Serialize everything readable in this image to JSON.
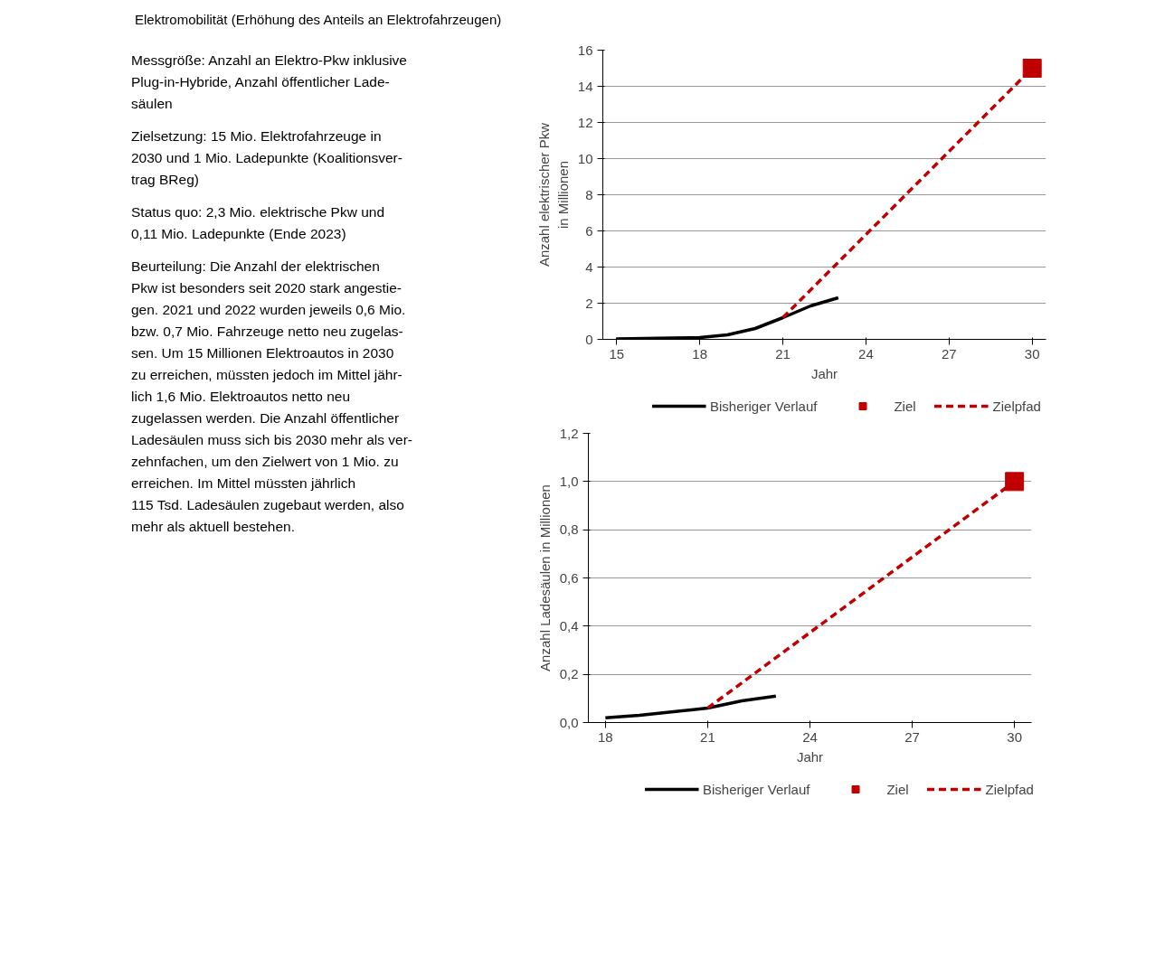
{
  "chart_data": [
    {
      "type": "other",
      "title": "Elektromobilität (Erhöhung des Anteils an Elektrofahrzeugen)",
      "annotations": [
        "Messgröße:  Anzahl an Elektro-Pkw inklusive\nPlug-in-Hybride, Anzahl öffentlicher Lade-\nsäulen",
        "Zielsetzung: 15 Mio. Elektrofahrzeuge in\n2030 und 1 Mio. Ladepunkte (Koalitionsver-\ntrag BReg)",
        "Status quo: 2,3 Mio. elektrische Pkw und\n0,11 Mio. Ladepunkte (Ende 2023)",
        "Beurteilung: Die Anzahl der elektrischen\nPkw ist besonders seit 2020 stark angestie-\ngen. 2021 und 2022 wurden jeweils 0,6 Mio.\nbzw. 0,7 Mio. Fahrzeuge netto neu zugelas-\nsen. Um 15 Millionen Elektroautos in 2030\nzu erreichen, müssten jedoch im Mittel jähr-\nlich 1,6 Mio. Elektroautos netto neu\nzugelassen werden. Die Anzahl öffentlicher\nLadesäulen muss sich bis 2030 mehr als ver-\nzehnfachen, um den Zielwert von 1 Mio. zu\nerreichen. Im Mittel müssten jährlich\n115 Tsd. Ladesäulen zugebaut werden, also\nmehr als aktuell bestehen."
      ]
    },
    {
      "type": "line",
      "xlabel": "Jahr",
      "ylabel": "Anzahl elektrischer Pkw\nin Millionen",
      "xlim": [
        14.5,
        30.5
      ],
      "xticks": [
        15,
        18,
        21,
        24,
        27,
        30
      ],
      "ylim": [
        0,
        16
      ],
      "yticks": [
        0,
        2,
        4,
        6,
        8,
        10,
        12,
        14,
        16
      ],
      "grid": "y",
      "legend": "bottom",
      "series": [
        {
          "name": "Bisheriger Verlauf",
          "color": "#000000",
          "x": [
            15,
            16,
            17,
            18,
            19,
            20,
            21,
            22,
            23
          ],
          "values": [
            0.03,
            0.05,
            0.08,
            0.1,
            0.25,
            0.6,
            1.2,
            1.85,
            2.3
          ]
        },
        {
          "name": "Ziel",
          "type": "scatter",
          "marker": "square",
          "color": "#c00000",
          "x": [
            30
          ],
          "values": [
            15
          ]
        },
        {
          "name": "Zielpfad",
          "color": "#c00000",
          "line_style": "dashed",
          "x": [
            21,
            30
          ],
          "values": [
            1.2,
            15
          ]
        }
      ]
    },
    {
      "type": "line",
      "xlabel": "Jahr",
      "ylabel": "Anzahl Ladesäulen in Millionen",
      "xlim": [
        17.5,
        30.5
      ],
      "xticks": [
        18,
        21,
        24,
        27,
        30
      ],
      "ylim": [
        0,
        1.2
      ],
      "yticks": [
        {
          "value": 0,
          "label": "0,0"
        },
        {
          "value": 0.2,
          "label": "0,2"
        },
        {
          "value": 0.4,
          "label": "0,4"
        },
        {
          "value": 0.6,
          "label": "0,6"
        },
        {
          "value": 0.8,
          "label": "0,8"
        },
        {
          "value": 1.0,
          "label": "1,0"
        },
        {
          "value": 1.2,
          "label": "1,2"
        }
      ],
      "grid": "y",
      "legend": "bottom",
      "series": [
        {
          "name": "Bisheriger Verlauf",
          "color": "#000000",
          "x": [
            18,
            19,
            20,
            21,
            22,
            23
          ],
          "values": [
            0.02,
            0.03,
            0.045,
            0.06,
            0.09,
            0.11
          ]
        },
        {
          "name": "Ziel",
          "type": "scatter",
          "marker": "square",
          "color": "#c00000",
          "x": [
            30
          ],
          "values": [
            1.0
          ]
        },
        {
          "name": "Zielpfad",
          "color": "#c00000",
          "line_style": "dashed",
          "x": [
            21,
            30
          ],
          "values": [
            0.06,
            1.0
          ]
        }
      ]
    }
  ]
}
